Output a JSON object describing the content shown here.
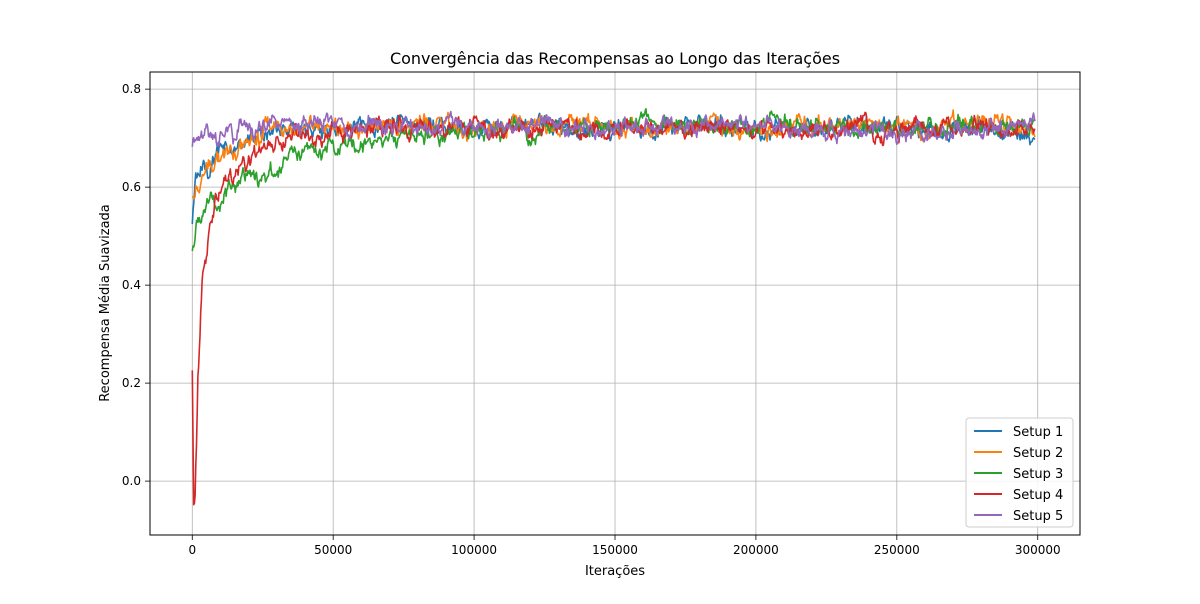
{
  "chart_data": {
    "type": "line",
    "title": "Convergência das Recompensas ao Longo das Iterações",
    "xlabel": "Iterações",
    "ylabel": "Recompensa Média Suavizada",
    "xlim": [
      -15000,
      315000
    ],
    "ylim": [
      -0.11,
      0.835
    ],
    "x_ticks": [
      0,
      50000,
      100000,
      150000,
      200000,
      250000,
      300000
    ],
    "x_tick_labels": [
      "0",
      "50000",
      "100000",
      "150000",
      "200000",
      "250000",
      "300000"
    ],
    "y_ticks": [
      0.0,
      0.2,
      0.4,
      0.6,
      0.8
    ],
    "y_tick_labels": [
      "0.0",
      "0.2",
      "0.4",
      "0.6",
      "0.8"
    ],
    "grid": true,
    "legend_position": "lower-right",
    "series": [
      {
        "name": "Setup 1",
        "color": "#1f77b4",
        "x": [
          0,
          1000,
          2000,
          4000,
          6000,
          10000,
          15000,
          20000,
          25000,
          30000,
          40000,
          50000,
          60000,
          80000,
          100000,
          120000,
          140000,
          160000,
          180000,
          200000,
          220000,
          240000,
          260000,
          280000,
          299000
        ],
        "values": [
          0.53,
          0.6,
          0.63,
          0.65,
          0.65,
          0.67,
          0.68,
          0.7,
          0.71,
          0.72,
          0.72,
          0.72,
          0.73,
          0.73,
          0.72,
          0.73,
          0.72,
          0.72,
          0.73,
          0.72,
          0.72,
          0.73,
          0.72,
          0.72,
          0.71
        ]
      },
      {
        "name": "Setup 2",
        "color": "#ff7f0e",
        "x": [
          0,
          1000,
          2000,
          4000,
          6000,
          10000,
          15000,
          20000,
          25000,
          30000,
          40000,
          50000,
          60000,
          80000,
          100000,
          120000,
          140000,
          160000,
          180000,
          200000,
          220000,
          240000,
          260000,
          280000,
          299000
        ],
        "values": [
          0.58,
          0.6,
          0.62,
          0.63,
          0.64,
          0.66,
          0.68,
          0.69,
          0.71,
          0.72,
          0.72,
          0.73,
          0.72,
          0.73,
          0.72,
          0.73,
          0.73,
          0.72,
          0.73,
          0.72,
          0.72,
          0.73,
          0.72,
          0.73,
          0.71
        ]
      },
      {
        "name": "Setup 3",
        "color": "#2ca02c",
        "x": [
          0,
          1000,
          2000,
          4000,
          6000,
          10000,
          15000,
          20000,
          25000,
          30000,
          40000,
          50000,
          60000,
          80000,
          100000,
          120000,
          140000,
          160000,
          180000,
          200000,
          220000,
          240000,
          260000,
          280000,
          299000
        ],
        "values": [
          0.48,
          0.5,
          0.52,
          0.55,
          0.56,
          0.57,
          0.59,
          0.61,
          0.62,
          0.64,
          0.67,
          0.68,
          0.69,
          0.71,
          0.71,
          0.72,
          0.72,
          0.73,
          0.72,
          0.72,
          0.73,
          0.72,
          0.72,
          0.73,
          0.72
        ]
      },
      {
        "name": "Setup 4",
        "color": "#d62728",
        "x": [
          0,
          500,
          1000,
          1500,
          2000,
          2500,
          3000,
          3500,
          4000,
          5000,
          6000,
          8000,
          10000,
          12000,
          15000,
          20000,
          25000,
          30000,
          40000,
          50000,
          60000,
          80000,
          100000,
          120000,
          140000,
          160000,
          180000,
          200000,
          220000,
          240000,
          260000,
          280000,
          299000
        ],
        "values": [
          0.23,
          -0.06,
          -0.02,
          0.07,
          0.2,
          0.27,
          0.33,
          0.38,
          0.42,
          0.46,
          0.51,
          0.56,
          0.59,
          0.61,
          0.63,
          0.66,
          0.68,
          0.69,
          0.7,
          0.71,
          0.72,
          0.72,
          0.72,
          0.72,
          0.72,
          0.72,
          0.72,
          0.71,
          0.72,
          0.72,
          0.72,
          0.72,
          0.72
        ]
      },
      {
        "name": "Setup 5",
        "color": "#9467bd",
        "x": [
          0,
          1000,
          2000,
          4000,
          6000,
          10000,
          15000,
          20000,
          25000,
          30000,
          40000,
          50000,
          60000,
          80000,
          100000,
          120000,
          140000,
          160000,
          180000,
          200000,
          220000,
          240000,
          260000,
          280000,
          299000
        ],
        "values": [
          0.68,
          0.69,
          0.69,
          0.7,
          0.7,
          0.71,
          0.71,
          0.72,
          0.72,
          0.73,
          0.73,
          0.73,
          0.73,
          0.73,
          0.72,
          0.73,
          0.72,
          0.72,
          0.73,
          0.72,
          0.72,
          0.72,
          0.71,
          0.72,
          0.73
        ]
      }
    ]
  }
}
